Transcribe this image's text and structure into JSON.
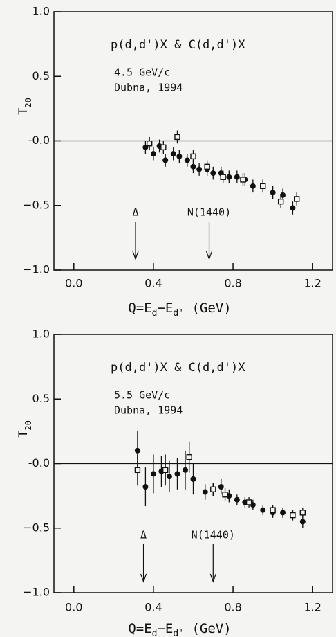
{
  "chart_data": [
    {
      "type": "scatter",
      "title": "p(d,d')X & C(d,d')X",
      "annotations_text": [
        "4.5 GeV/c",
        "Dubna, 1994"
      ],
      "arrows": [
        {
          "text": "Δ",
          "x": 0.31
        },
        {
          "text": "N(1440)",
          "x": 0.68
        }
      ],
      "xlabel_parts": [
        "Q=E",
        "d",
        "−E",
        "d'",
        " (GeV)"
      ],
      "ylabel_parts": [
        "T",
        "20"
      ],
      "xlim": [
        -0.1,
        1.3
      ],
      "ylim": [
        -1.0,
        1.0
      ],
      "xticks": [
        {
          "value": 0,
          "label": "0.0"
        },
        {
          "value": 0.4,
          "label": "0.4"
        },
        {
          "value": 0.8,
          "label": "0.8"
        },
        {
          "value": 1.2,
          "label": "1.2"
        }
      ],
      "yticks": [
        {
          "value": -1,
          "label": "−1.0"
        },
        {
          "value": -0.5,
          "label": "−0.5"
        },
        {
          "value": 0,
          "label": "-0.0"
        },
        {
          "value": 0.5,
          "label": "0.5"
        },
        {
          "value": 1,
          "label": "1.0"
        }
      ],
      "reference_line": 0,
      "series": [
        {
          "marker": "circle",
          "color": "#111111",
          "x": [
            0.36,
            0.4,
            0.43,
            0.46,
            0.5,
            0.53,
            0.57,
            0.6,
            0.63,
            0.67,
            0.7,
            0.74,
            0.78,
            0.82,
            0.86,
            0.9,
            0.95,
            1.0,
            1.05,
            1.1
          ],
          "values": [
            -0.05,
            -0.1,
            -0.04,
            -0.15,
            -0.1,
            -0.12,
            -0.15,
            -0.2,
            -0.22,
            -0.22,
            -0.25,
            -0.25,
            -0.28,
            -0.28,
            -0.3,
            -0.35,
            -0.35,
            -0.4,
            -0.42,
            -0.52
          ],
          "errors": [
            0.05,
            0.05,
            0.05,
            0.05,
            0.05,
            0.05,
            0.05,
            0.05,
            0.05,
            0.05,
            0.05,
            0.05,
            0.05,
            0.05,
            0.05,
            0.05,
            0.05,
            0.05,
            0.05,
            0.05
          ]
        },
        {
          "marker": "square",
          "color": "#111111",
          "x": [
            0.38,
            0.45,
            0.52,
            0.6,
            0.67,
            0.75,
            0.85,
            0.95,
            1.04,
            1.12
          ],
          "values": [
            -0.02,
            -0.05,
            0.03,
            -0.12,
            -0.2,
            -0.28,
            -0.3,
            -0.35,
            -0.47,
            -0.45
          ],
          "errors": [
            0.05,
            0.05,
            0.05,
            0.05,
            0.05,
            0.05,
            0.05,
            0.05,
            0.05,
            0.05
          ]
        }
      ]
    },
    {
      "type": "scatter",
      "title": "p(d,d')X & C(d,d')X",
      "annotations_text": [
        "5.5 GeV/c",
        "Dubna, 1994"
      ],
      "arrows": [
        {
          "text": "Δ",
          "x": 0.35
        },
        {
          "text": "N(1440)",
          "x": 0.7
        }
      ],
      "xlabel_parts": [
        "Q=E",
        "d",
        "−E",
        "d'",
        " (GeV)"
      ],
      "ylabel_parts": [
        "T",
        "20"
      ],
      "xlim": [
        -0.1,
        1.3
      ],
      "ylim": [
        -1.0,
        1.0
      ],
      "xticks": [
        {
          "value": 0,
          "label": "0.0"
        },
        {
          "value": 0.4,
          "label": "0.4"
        },
        {
          "value": 0.8,
          "label": "0.8"
        },
        {
          "value": 1.2,
          "label": "1.2"
        }
      ],
      "yticks": [
        {
          "value": -1,
          "label": "−1.0"
        },
        {
          "value": -0.5,
          "label": "−0.5"
        },
        {
          "value": 0,
          "label": "-0.0"
        },
        {
          "value": 0.5,
          "label": "0.5"
        },
        {
          "value": 1,
          "label": "1.0"
        }
      ],
      "reference_line": 0,
      "series": [
        {
          "marker": "circle",
          "color": "#111111",
          "x": [
            0.32,
            0.36,
            0.4,
            0.44,
            0.48,
            0.52,
            0.56,
            0.6,
            0.66,
            0.7,
            0.74,
            0.78,
            0.82,
            0.86,
            0.9,
            0.95,
            1.0,
            1.05,
            1.1,
            1.15
          ],
          "values": [
            0.1,
            -0.18,
            -0.08,
            -0.06,
            -0.1,
            -0.08,
            -0.05,
            -0.12,
            -0.22,
            -0.2,
            -0.18,
            -0.25,
            -0.28,
            -0.3,
            -0.32,
            -0.36,
            -0.38,
            -0.38,
            -0.4,
            -0.45
          ],
          "errors": [
            0.15,
            0.15,
            0.15,
            0.12,
            0.12,
            0.12,
            0.15,
            0.12,
            0.06,
            0.05,
            0.06,
            0.05,
            0.04,
            0.04,
            0.04,
            0.04,
            0.04,
            0.04,
            0.04,
            0.05
          ]
        },
        {
          "marker": "square",
          "color": "#111111",
          "x": [
            0.32,
            0.46,
            0.58,
            0.7,
            0.76,
            0.88,
            1.0,
            1.1,
            1.15
          ],
          "values": [
            -0.05,
            -0.05,
            0.05,
            -0.2,
            -0.24,
            -0.3,
            -0.36,
            -0.4,
            -0.38
          ],
          "errors": [
            0.12,
            0.12,
            0.12,
            0.05,
            0.05,
            0.04,
            0.04,
            0.04,
            0.04
          ]
        }
      ]
    }
  ]
}
